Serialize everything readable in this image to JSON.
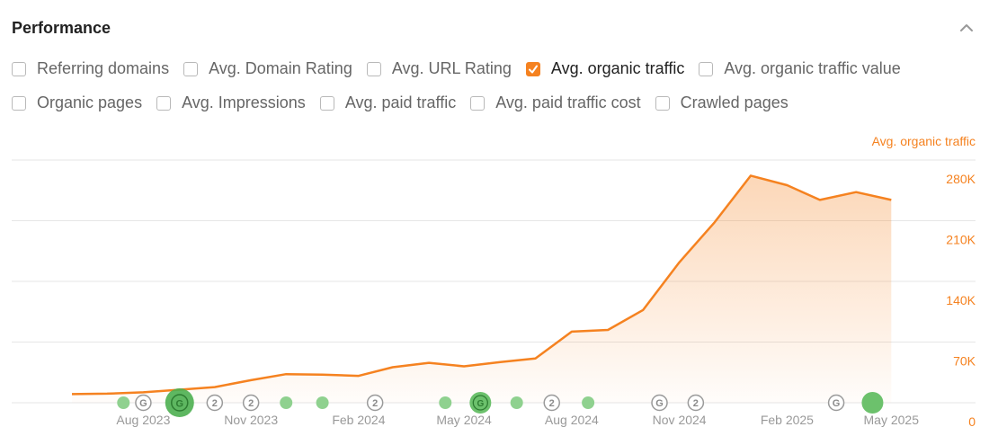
{
  "panel": {
    "title": "Performance"
  },
  "metrics": [
    {
      "label": "Referring domains",
      "checked": false
    },
    {
      "label": "Avg. Domain Rating",
      "checked": false
    },
    {
      "label": "Avg. URL Rating",
      "checked": false
    },
    {
      "label": "Avg. organic traffic",
      "checked": true
    },
    {
      "label": "Avg. organic traffic value",
      "checked": false
    },
    {
      "label": "Organic pages",
      "checked": false
    },
    {
      "label": "Avg. Impressions",
      "checked": false
    },
    {
      "label": "Avg. paid traffic",
      "checked": false
    },
    {
      "label": "Avg. paid traffic cost",
      "checked": false
    },
    {
      "label": "Crawled pages",
      "checked": false
    }
  ],
  "colors": {
    "accent": "#f58220",
    "marker_green": "#8fd18f",
    "marker_green_big": "#4caf50",
    "grid": "#e6e6e6",
    "axis_text": "#999999"
  },
  "chart_data": {
    "type": "area",
    "title": "",
    "series_label": "Avg. organic traffic",
    "ylabel": "Avg. organic traffic",
    "ylim": [
      0,
      280000
    ],
    "yticks": [
      0,
      70000,
      140000,
      210000,
      280000
    ],
    "ytick_labels": [
      "0",
      "70K",
      "140K",
      "210K",
      "280K"
    ],
    "x_start": "2023-06-01",
    "x_end": "2025-05-20",
    "xtick_dates": [
      "2023-08-01",
      "2023-11-01",
      "2024-02-01",
      "2024-05-01",
      "2024-08-01",
      "2024-11-01",
      "2025-02-01",
      "2025-05-01"
    ],
    "xtick_labels": [
      "Aug 2023",
      "Nov 2023",
      "Feb 2024",
      "May 2024",
      "Aug 2024",
      "Nov 2024",
      "Feb 2025",
      "May 2025"
    ],
    "x": [
      "2023-06-01",
      "2023-07-01",
      "2023-08-01",
      "2023-09-01",
      "2023-10-01",
      "2023-11-01",
      "2023-12-01",
      "2024-01-01",
      "2024-02-01",
      "2024-03-01",
      "2024-04-01",
      "2024-05-01",
      "2024-06-01",
      "2024-07-01",
      "2024-08-01",
      "2024-09-01",
      "2024-10-01",
      "2024-11-01",
      "2024-12-01",
      "2025-01-01",
      "2025-02-01",
      "2025-03-01",
      "2025-04-01",
      "2025-05-01"
    ],
    "values": [
      10000,
      10500,
      12000,
      15000,
      18000,
      26000,
      33000,
      32500,
      31000,
      41000,
      46000,
      42000,
      47000,
      51000,
      82000,
      84000,
      107000,
      162000,
      208000,
      262000,
      251000,
      234000,
      243000,
      234000
    ],
    "markers": [
      {
        "date": "2023-07-15",
        "kind": "dot"
      },
      {
        "date": "2023-08-01",
        "kind": "G"
      },
      {
        "date": "2023-09-01",
        "kind": "G-big"
      },
      {
        "date": "2023-10-01",
        "kind": "2"
      },
      {
        "date": "2023-11-01",
        "kind": "2"
      },
      {
        "date": "2023-12-01",
        "kind": "dot"
      },
      {
        "date": "2024-01-01",
        "kind": "dot"
      },
      {
        "date": "2024-02-15",
        "kind": "2"
      },
      {
        "date": "2024-04-15",
        "kind": "dot"
      },
      {
        "date": "2024-05-15",
        "kind": "G-green"
      },
      {
        "date": "2024-06-15",
        "kind": "dot"
      },
      {
        "date": "2024-07-15",
        "kind": "2"
      },
      {
        "date": "2024-08-15",
        "kind": "dot"
      },
      {
        "date": "2024-10-15",
        "kind": "G"
      },
      {
        "date": "2024-11-15",
        "kind": "2"
      },
      {
        "date": "2025-03-15",
        "kind": "G"
      },
      {
        "date": "2025-04-15",
        "kind": "dot-big"
      }
    ]
  }
}
